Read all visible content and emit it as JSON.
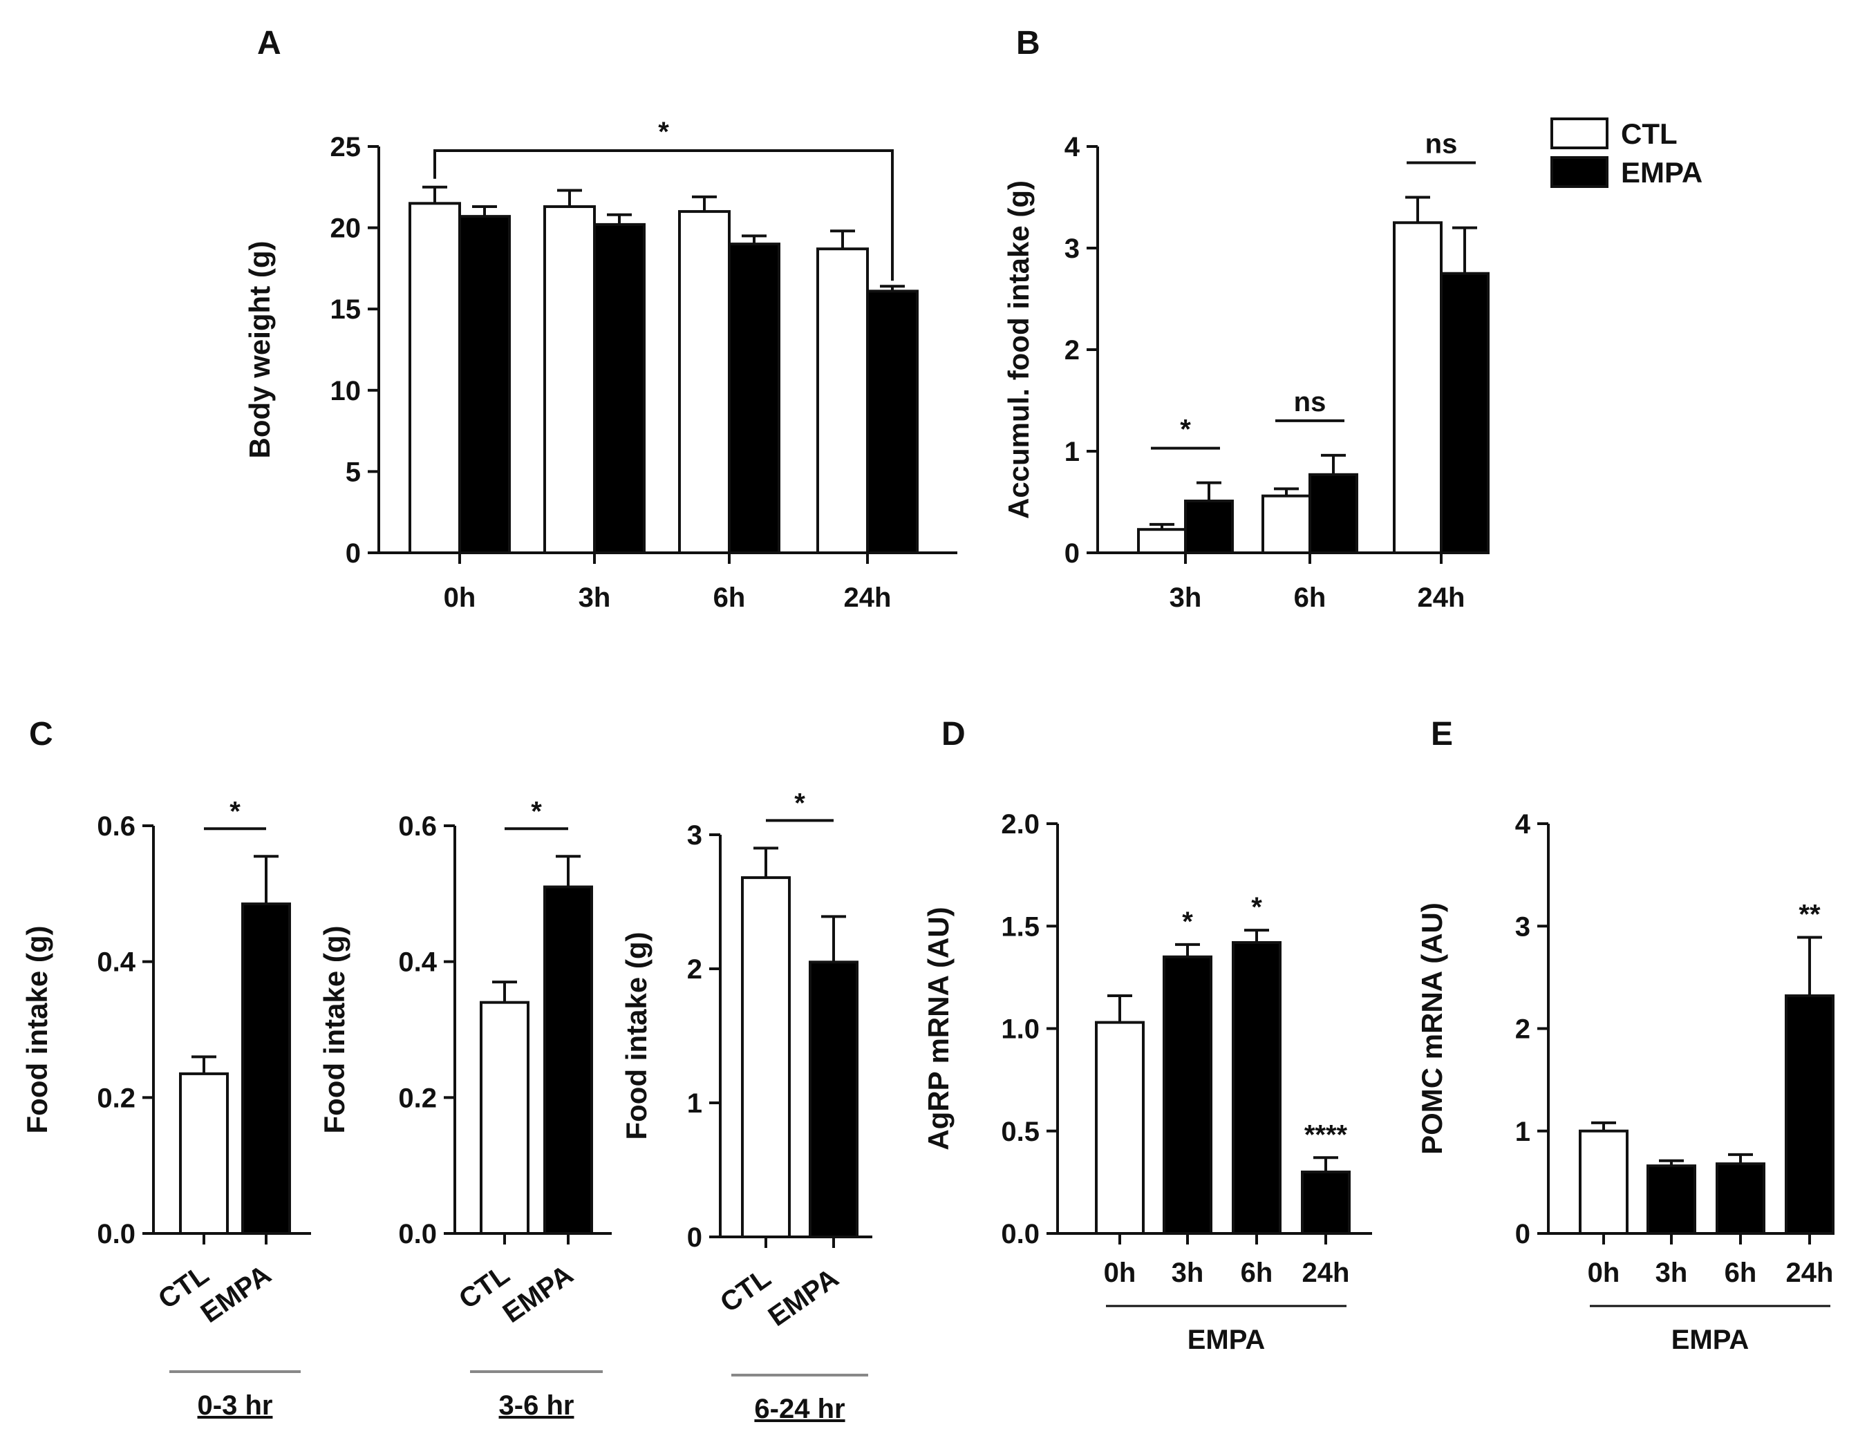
{
  "colors": {
    "ctl_fill": "#ffffff",
    "empa_fill": "#000000",
    "ink": "#111111",
    "underline": "#888888"
  },
  "legend": {
    "entries": [
      {
        "label": "CTL",
        "kind": "ctl"
      },
      {
        "label": "EMPA",
        "kind": "empa"
      }
    ]
  },
  "chart_data": [
    {
      "id": "A",
      "letter": "A",
      "type": "bar",
      "ylabel": "Body weight (g)",
      "ylim": [
        0,
        25
      ],
      "yticks": [
        0,
        5,
        10,
        15,
        20,
        25
      ],
      "categories": [
        "0h",
        "3h",
        "6h",
        "24h"
      ],
      "series": [
        {
          "name": "CTL",
          "kind": "ctl",
          "values": [
            21.5,
            21.3,
            21.0,
            18.7
          ],
          "errors": [
            1.0,
            1.0,
            0.9,
            1.1
          ]
        },
        {
          "name": "EMPA",
          "kind": "empa",
          "values": [
            20.7,
            20.2,
            19.0,
            16.1
          ],
          "errors": [
            0.6,
            0.6,
            0.5,
            0.3
          ]
        }
      ],
      "annotations": [
        {
          "type": "bracket",
          "from": 0,
          "to": 3,
          "text": "*"
        }
      ]
    },
    {
      "id": "B",
      "letter": "B",
      "type": "bar",
      "ylabel": "Accumul. food intake (g)",
      "ylim": [
        0,
        4
      ],
      "yticks": [
        0,
        1,
        2,
        3,
        4
      ],
      "categories": [
        "3h",
        "6h",
        "24h"
      ],
      "series": [
        {
          "name": "CTL",
          "kind": "ctl",
          "values": [
            0.23,
            0.56,
            3.25
          ],
          "errors": [
            0.05,
            0.07,
            0.25
          ]
        },
        {
          "name": "EMPA",
          "kind": "empa",
          "values": [
            0.51,
            0.77,
            2.75
          ],
          "errors": [
            0.18,
            0.19,
            0.45
          ]
        }
      ],
      "annotations": [
        {
          "type": "line",
          "cat": 0,
          "text": "*"
        },
        {
          "type": "line",
          "cat": 1,
          "text": "ns"
        },
        {
          "type": "line",
          "cat": 2,
          "text": "ns"
        }
      ]
    },
    {
      "id": "C1",
      "letter": "C",
      "type": "bar",
      "ylabel": "Food intake (g)",
      "ylim": [
        0,
        0.6
      ],
      "yticks": [
        "0.0",
        "0.2",
        "0.4",
        "0.6"
      ],
      "categories": [
        "CTL",
        "EMPA"
      ],
      "values": [
        0.235,
        0.485
      ],
      "errors": [
        0.025,
        0.07
      ],
      "kinds": [
        "ctl",
        "empa"
      ],
      "sig": "*",
      "group_label": "0-3 hr"
    },
    {
      "id": "C2",
      "type": "bar",
      "ylabel": "Food intake (g)",
      "ylim": [
        0,
        0.6
      ],
      "yticks": [
        "0.0",
        "0.2",
        "0.4",
        "0.6"
      ],
      "categories": [
        "CTL",
        "EMPA"
      ],
      "values": [
        0.34,
        0.51
      ],
      "errors": [
        0.03,
        0.045
      ],
      "kinds": [
        "ctl",
        "empa"
      ],
      "sig": "*",
      "group_label": "3-6 hr"
    },
    {
      "id": "C3",
      "type": "bar",
      "ylabel": "Food intake (g)",
      "ylim": [
        0,
        3
      ],
      "yticks": [
        "0",
        "1",
        "2",
        "3"
      ],
      "categories": [
        "CTL",
        "EMPA"
      ],
      "values": [
        2.68,
        2.05
      ],
      "errors": [
        0.22,
        0.34
      ],
      "kinds": [
        "ctl",
        "empa"
      ],
      "sig": "*",
      "group_label": "6-24 hr"
    },
    {
      "id": "D",
      "letter": "D",
      "type": "bar",
      "ylabel": "AgRP mRNA (AU)",
      "ylim": [
        0,
        2
      ],
      "yticks": [
        "0.0",
        "0.5",
        "1.0",
        "1.5",
        "2.0"
      ],
      "categories": [
        "0h",
        "3h",
        "6h",
        "24h"
      ],
      "values": [
        1.03,
        1.35,
        1.42,
        0.3
      ],
      "errors": [
        0.13,
        0.06,
        0.06,
        0.07
      ],
      "kinds": [
        "ctl",
        "empa",
        "empa",
        "empa"
      ],
      "sigs": [
        "",
        "*",
        "*",
        "****"
      ],
      "group_label": "EMPA"
    },
    {
      "id": "E",
      "letter": "E",
      "type": "bar",
      "ylabel": "POMC mRNA (AU)",
      "ylim": [
        0,
        4
      ],
      "yticks": [
        "0",
        "1",
        "2",
        "3",
        "4"
      ],
      "categories": [
        "0h",
        "3h",
        "6h",
        "24h"
      ],
      "values": [
        1.0,
        0.66,
        0.68,
        2.32
      ],
      "errors": [
        0.08,
        0.05,
        0.09,
        0.57
      ],
      "kinds": [
        "ctl",
        "empa",
        "empa",
        "empa"
      ],
      "sigs": [
        "",
        "",
        "",
        "**"
      ],
      "group_label": "EMPA"
    }
  ]
}
